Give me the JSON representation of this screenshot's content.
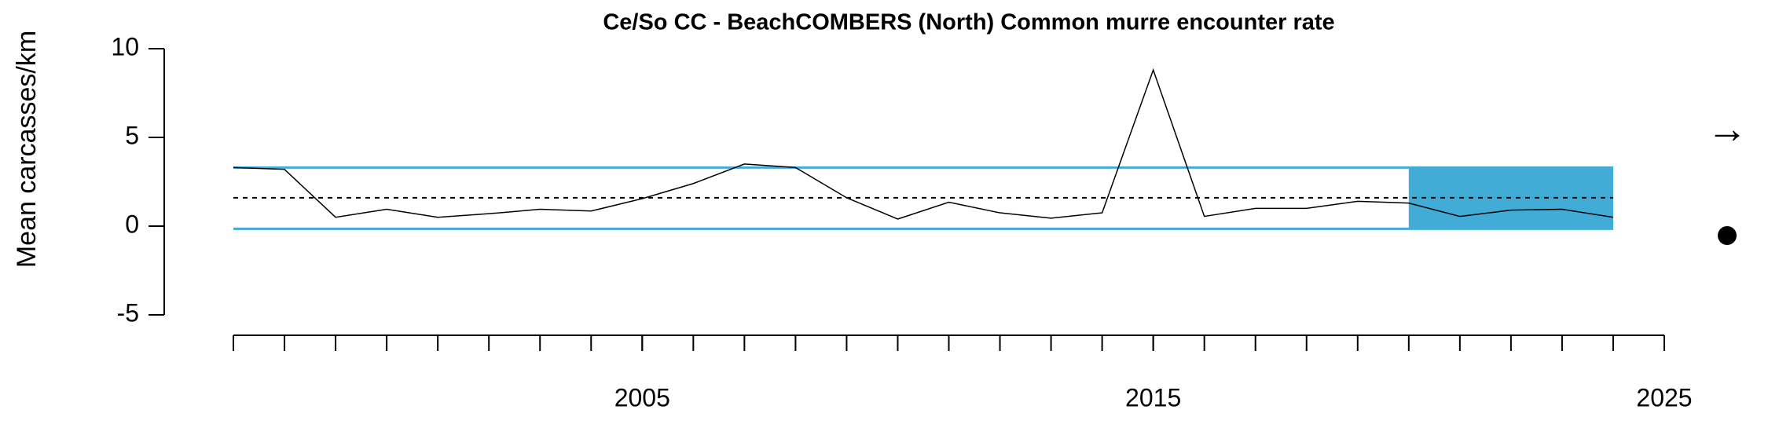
{
  "chart_data": {
    "type": "line",
    "title": "Ce/So CC - BeachCOMBERS (North) Common murre encounter rate",
    "y_label": "Mean carcasses/km",
    "x": [
      1997,
      1998,
      1999,
      2000,
      2001,
      2002,
      2003,
      2004,
      2005,
      2006,
      2007,
      2008,
      2009,
      2010,
      2011,
      2012,
      2013,
      2014,
      2015,
      2016,
      2017,
      2018,
      2019,
      2020,
      2021,
      2022,
      2023,
      2024
    ],
    "values": [
      3.3,
      3.2,
      0.5,
      0.95,
      0.5,
      0.7,
      0.95,
      0.85,
      1.55,
      2.4,
      3.5,
      3.3,
      1.6,
      0.4,
      1.35,
      0.75,
      0.45,
      0.75,
      8.8,
      0.55,
      1.0,
      1.0,
      1.4,
      1.3,
      0.55,
      0.9,
      0.95,
      0.5
    ],
    "color": "#000000",
    "mean": 1.6,
    "upper": 3.3,
    "lower": -0.15,
    "band_color": "#41acd6",
    "highlight_range": [
      2020,
      2024
    ],
    "xlim": [
      1997,
      2025
    ],
    "xticks": [
      2005,
      2015,
      2025
    ],
    "minor_xticks": [
      1997,
      1998,
      1999,
      2000,
      2001,
      2002,
      2003,
      2004,
      2005,
      2006,
      2007,
      2008,
      2009,
      2010,
      2011,
      2012,
      2013,
      2014,
      2015,
      2016,
      2017,
      2018,
      2019,
      2020,
      2021,
      2022,
      2023,
      2024,
      2025
    ],
    "ylim": [
      -5,
      10
    ],
    "yticks": [
      -5,
      0,
      5,
      10
    ],
    "trend_symbol": "→"
  }
}
